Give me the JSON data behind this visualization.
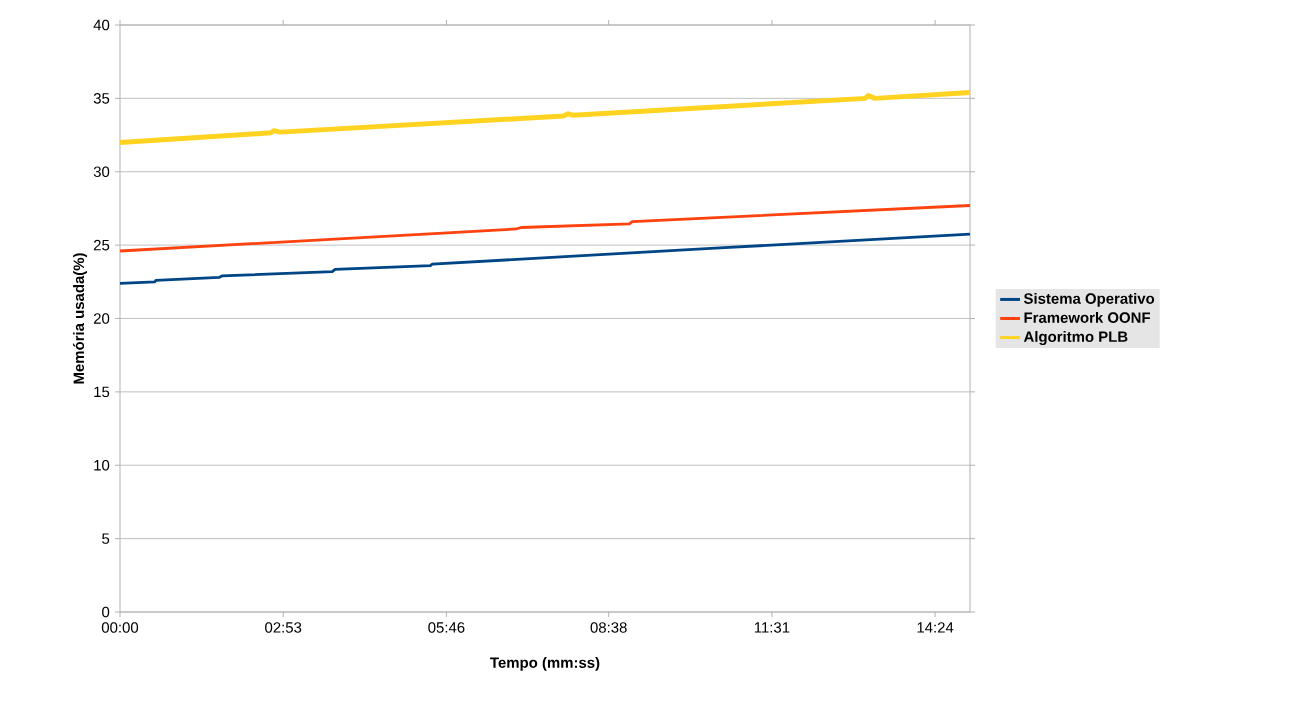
{
  "chart_data": {
    "type": "line",
    "xlabel": "Tempo (mm:ss)",
    "ylabel": "Memória usada(%)",
    "xlim": [
      0,
      901
    ],
    "ylim": [
      0,
      40
    ],
    "xticks": [
      {
        "value": 0,
        "label": "00:00"
      },
      {
        "value": 173,
        "label": "02:53"
      },
      {
        "value": 346,
        "label": "05:46"
      },
      {
        "value": 518,
        "label": "08:38"
      },
      {
        "value": 691,
        "label": "11:31"
      },
      {
        "value": 864,
        "label": "14:24"
      }
    ],
    "yticks": [
      0,
      5,
      10,
      15,
      20,
      25,
      30,
      35,
      40
    ],
    "grid": "y",
    "legend": "right",
    "marker": "none",
    "line_style": "solid",
    "series": [
      {
        "name": "Sistema Operativo",
        "color": "#004586",
        "x": [
          0,
          37,
          38,
          105,
          108,
          225,
          228,
          329,
          331,
          631,
          705,
          901
        ],
        "values": [
          22.4,
          22.5,
          22.6,
          22.8,
          22.9,
          23.2,
          23.35,
          23.6,
          23.7,
          24.8,
          25.05,
          25.75
        ]
      },
      {
        "name": "Framework OONF",
        "color": "#ff420e",
        "x": [
          0,
          420,
          425,
          540,
          543,
          901
        ],
        "values": [
          24.6,
          26.1,
          26.2,
          26.45,
          26.6,
          27.7
        ]
      },
      {
        "name": "Algoritmo PLB",
        "color": "#ffd320",
        "x": [
          0,
          160,
          163,
          170,
          470,
          475,
          480,
          790,
          793,
          800,
          901
        ],
        "values": [
          32.0,
          32.65,
          32.8,
          32.7,
          33.8,
          33.95,
          33.85,
          35.0,
          35.2,
          35.0,
          35.4
        ]
      }
    ]
  }
}
